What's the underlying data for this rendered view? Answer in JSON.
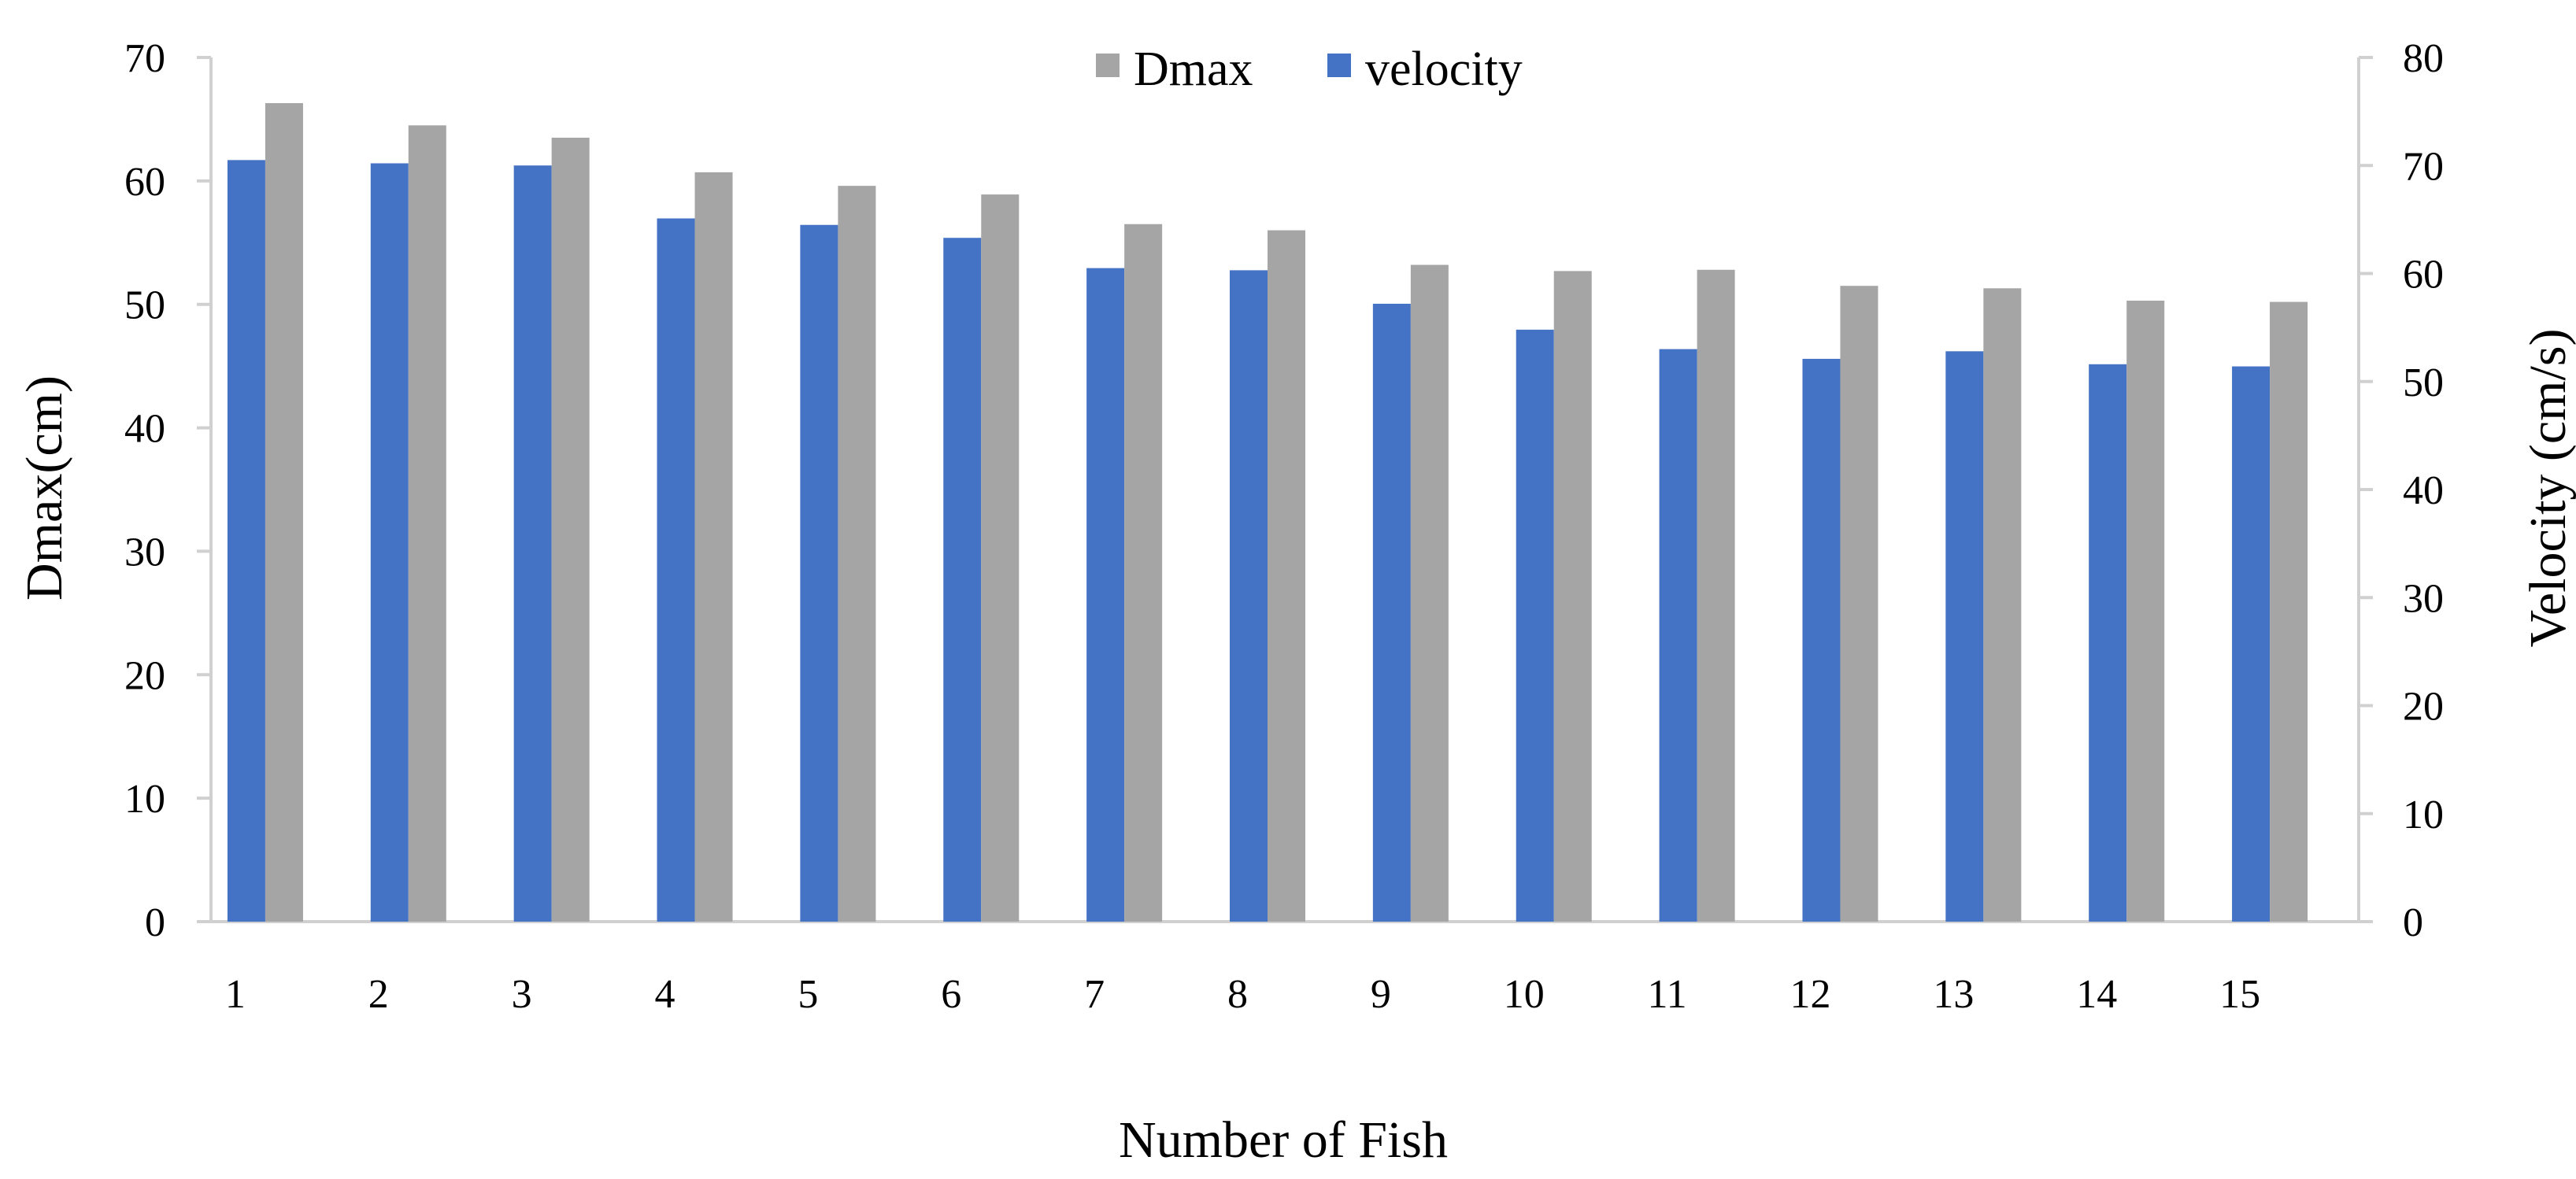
{
  "chart_data": {
    "type": "bar",
    "xlabel": "Number of Fish",
    "ylabel_left": "Dmax(cm)",
    "ylabel_right": "Velocity (cm/s)",
    "categories": [
      "1",
      "2",
      "3",
      "4",
      "5",
      "6",
      "7",
      "8",
      "9",
      "10",
      "11",
      "12",
      "13",
      "14",
      "15"
    ],
    "y_left_range": [
      0,
      70
    ],
    "y_left_ticks": [
      0,
      10,
      20,
      30,
      40,
      50,
      60,
      70
    ],
    "y_right_range": [
      0,
      80
    ],
    "y_right_ticks": [
      0,
      10,
      20,
      30,
      40,
      50,
      60,
      70,
      80
    ],
    "grid": false,
    "legend_position": "top-center",
    "legend": [
      "Dmax",
      "velocity"
    ],
    "series": [
      {
        "name": "velocity",
        "axis": "right",
        "color": "#4472C4",
        "values": [
          70.5,
          70.2,
          70.0,
          65.1,
          64.5,
          63.3,
          60.5,
          60.3,
          57.2,
          54.8,
          53.0,
          52.1,
          52.8,
          51.6,
          51.4
        ]
      },
      {
        "name": "Dmax",
        "axis": "left",
        "color": "#A5A5A5",
        "values": [
          66.3,
          64.5,
          63.5,
          60.7,
          59.6,
          58.9,
          56.5,
          56.0,
          53.2,
          52.7,
          52.8,
          51.5,
          51.3,
          50.3,
          50.2
        ]
      }
    ]
  }
}
